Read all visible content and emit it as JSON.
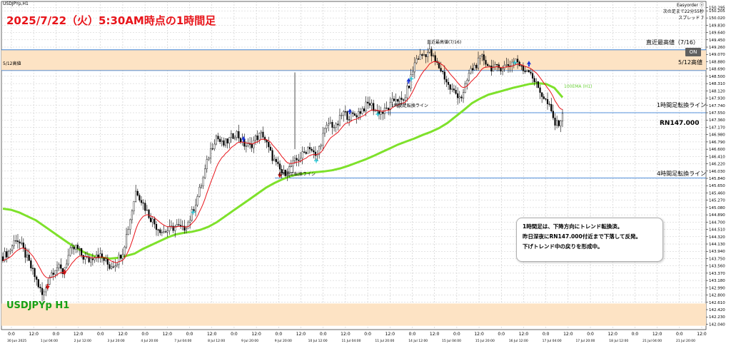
{
  "symbol_label": "USDJPYp,H1",
  "title": "2025/7/22（火）5:30AM時点の1時間足",
  "symbol_big": "USDJPYp H1",
  "trade_info": {
    "line1": "Easyorder ⓥ",
    "line2": "次の足まで22分55秒",
    "line3": "スプレッド 7"
  },
  "on_button": "ON",
  "zones": {
    "upper_label_right": "直近最高値（7/16）",
    "upper_label_top": "直近最高値(7/16)",
    "upper_label_left": "5/12高値",
    "upper_label_right2": "5/12高値",
    "color_zone": "#fde3c4",
    "color_line": "#1e6fd1"
  },
  "lines": {
    "h1_label_right": "1時間足転換ライン",
    "h1_label_small": "1時間足転換ライン",
    "h4_label_right": "4時間足転換ライン",
    "h4_label_small": "4時間足転換ライン",
    "ema_label": "100EMA (H1)",
    "rn_label": "RN147.000"
  },
  "note": {
    "line1": "1時間足は、下降方向にトレンド転換済。",
    "line2": "昨日深夜にRN147.000付近まで下落して反発。",
    "line3": "下げトレンド中の戻りを形成中。"
  },
  "colors": {
    "candle": "#000000",
    "ema_short": "#e8141a",
    "ema_long": "#7ee12b",
    "grid": "#c8c8c8",
    "arrow_up": "#1c35d8",
    "arrow_down": "#c81414",
    "dot": "#27c6d6"
  },
  "chart_data": {
    "type": "candlestick",
    "title": "2025/7/22（火）5:30AM時点の1時間足",
    "xlabel": "",
    "ylabel": "",
    "ylim": [
      141.9,
      150.45
    ],
    "price_ticks": [
      "150.295",
      "150.205",
      "150.020",
      "149.830",
      "149.640",
      "149.450",
      "149.260",
      "149.070",
      "148.880",
      "148.690",
      "148.500",
      "148.310",
      "148.120",
      "147.930",
      "147.740",
      "147.550",
      "147.360",
      "147.170",
      "146.980",
      "146.790",
      "146.600",
      "146.410",
      "146.220",
      "146.030",
      "145.840",
      "145.650",
      "145.460",
      "145.270",
      "145.080",
      "144.890",
      "144.700",
      "144.510",
      "144.320",
      "144.130",
      "143.940",
      "143.750",
      "143.560",
      "143.370",
      "143.180",
      "142.990",
      "142.800",
      "142.610",
      "142.420",
      "142.230",
      "142.040",
      "141.850"
    ],
    "time_ticks_hour": [
      "0:0",
      "12:0",
      "0:0",
      "12:0",
      "0:0",
      "12:0",
      "0:0",
      "12:0",
      "0:0",
      "12:0",
      "0:0",
      "12:0",
      "0:0",
      "12:0",
      "0:0",
      "12:0",
      "0:0",
      "12:0",
      "0:0",
      "12:0",
      "0:0",
      "12:0",
      "0:0",
      "12:0",
      "0:0",
      "12:0",
      "0:0",
      "12:0",
      "0:0",
      "12:0",
      "0:0",
      "12:0"
    ],
    "time_ticks_date": [
      "30 Jun 2025",
      "1 Jul 04:00",
      "2 Jul 12:00",
      "3 Jul 20:00",
      "4 Jul 20:00",
      "7 Jul 04:00",
      "8 Jul 12:00",
      "9 Jul 20:00",
      "9 Jul 20:00",
      "10 Jul 12:00",
      "11 Jul 04:00",
      "11 Jul 20:00",
      "14 Jul 12:00",
      "15 Jul 04:00",
      "15 Jul 20:00",
      "16 Jul 12:00",
      "17 Jul 04:00",
      "17 Jul 20:00",
      "18 Jul 12:00",
      "21 Jul 04:00",
      "21 Jul 20:00"
    ],
    "levels": {
      "recent_high": 149.19,
      "may12_high": 148.65,
      "h1_turn": 147.55,
      "h4_turn": 145.85,
      "rn": 147.0,
      "lower_zone": [
        142.0,
        142.58
      ]
    },
    "price_path": [
      143.8,
      143.95,
      144.3,
      144.0,
      143.6,
      143.2,
      142.75,
      143.3,
      143.55,
      143.4,
      143.9,
      144.05,
      143.8,
      143.7,
      143.9,
      143.75,
      143.55,
      143.65,
      143.95,
      144.7,
      145.55,
      145.2,
      144.85,
      144.6,
      144.45,
      144.5,
      144.6,
      144.5,
      144.75,
      145.25,
      145.8,
      146.5,
      146.95,
      146.7,
      146.85,
      147.05,
      146.75,
      146.65,
      146.9,
      147.0,
      146.55,
      146.2,
      145.95,
      146.1,
      146.3,
      146.45,
      146.7,
      146.35,
      146.95,
      147.3,
      147.15,
      147.55,
      147.45,
      147.5,
      147.65,
      147.8,
      147.6,
      147.55,
      147.7,
      147.95,
      147.8,
      148.3,
      148.95,
      149.05,
      149.15,
      148.85,
      148.6,
      148.2,
      148.05,
      147.95,
      148.6,
      148.8,
      149.0,
      148.75,
      148.7,
      148.75,
      148.8,
      148.95,
      148.65,
      148.7,
      148.3,
      148.0,
      147.7,
      147.2,
      147.45
    ],
    "ema100_path": [
      145.05,
      145.02,
      144.95,
      144.85,
      144.75,
      144.6,
      144.45,
      144.3,
      144.15,
      144.02,
      143.9,
      143.82,
      143.78,
      143.75,
      143.77,
      143.82,
      143.88,
      144.0,
      144.1,
      144.2,
      144.3,
      144.38,
      144.42,
      144.45,
      144.5,
      144.58,
      144.7,
      144.85,
      145.0,
      145.15,
      145.3,
      145.45,
      145.6,
      145.72,
      145.82,
      145.9,
      145.95,
      145.98,
      146.0,
      146.02,
      146.05,
      146.1,
      146.17,
      146.25,
      146.33,
      146.42,
      146.52,
      146.62,
      146.72,
      146.8,
      146.88,
      146.97,
      147.05,
      147.15,
      147.28,
      147.45,
      147.62,
      147.8,
      147.92,
      148.02,
      148.08,
      148.14,
      148.2,
      148.25,
      148.3,
      148.32,
      148.3,
      148.2,
      147.95
    ]
  }
}
